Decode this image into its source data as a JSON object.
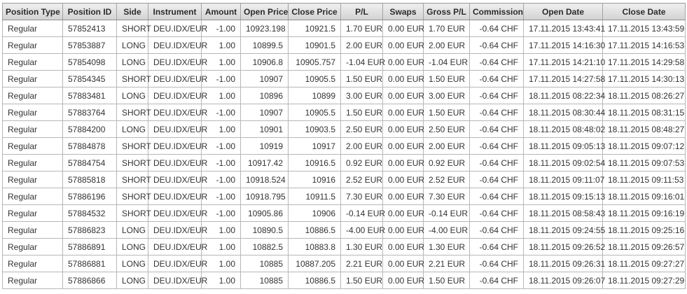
{
  "colors": {
    "positive_value": "#0a9a0a",
    "negative_value": "#cc0000",
    "header_background_top": "#efefef",
    "header_background_bottom": "#d2d2d2",
    "grid_border": "#b7b7b7",
    "text": "#333333"
  },
  "table": {
    "columns": [
      {
        "label": "Position Type",
        "width": 86,
        "align": "left",
        "type": "text"
      },
      {
        "label": "Position ID",
        "width": 77,
        "align": "left",
        "type": "text"
      },
      {
        "label": "Side",
        "width": 45,
        "align": "center",
        "type": "text"
      },
      {
        "label": "Instrument",
        "width": 76,
        "align": "center",
        "type": "text"
      },
      {
        "label": "Amount",
        "width": 56,
        "align": "right",
        "type": "signed"
      },
      {
        "label": "Open Price",
        "width": 68,
        "align": "right",
        "type": "number"
      },
      {
        "label": "Close Price",
        "width": 75,
        "align": "right",
        "type": "number"
      },
      {
        "label": "P/L",
        "width": 60,
        "align": "center",
        "type": "signed"
      },
      {
        "label": "Swaps",
        "width": 58,
        "align": "center",
        "type": "signed"
      },
      {
        "label": "Gross P/L",
        "width": 66,
        "align": "center",
        "type": "signed"
      },
      {
        "label": "Commission",
        "width": 77,
        "align": "right",
        "type": "signed"
      },
      {
        "label": "Open Date",
        "width": 113,
        "align": "center",
        "type": "date"
      },
      {
        "label": "Close Date",
        "width": 118,
        "align": "center",
        "type": "date"
      }
    ],
    "rows": [
      [
        "Regular",
        "57852413",
        "SHORT",
        "DEU.IDX/EUR",
        "-1.00",
        "10923.198",
        "10921.5",
        "1.70 EUR",
        "0.00 EUR",
        "1.70 EUR",
        "-0.64 CHF",
        "17.11.2015 13:43:41",
        "17.11.2015 13:43:59"
      ],
      [
        "Regular",
        "57853887",
        "LONG",
        "DEU.IDX/EUR",
        "1.00",
        "10899.5",
        "10901.5",
        "2.00 EUR",
        "0.00 EUR",
        "2.00 EUR",
        "-0.64 CHF",
        "17.11.2015 14:16:30",
        "17.11.2015 14:16:53"
      ],
      [
        "Regular",
        "57854098",
        "LONG",
        "DEU.IDX/EUR",
        "1.00",
        "10906.8",
        "10905.757",
        "-1.04 EUR",
        "0.00 EUR",
        "-1.04 EUR",
        "-0.64 CHF",
        "17.11.2015 14:21:10",
        "17.11.2015 14:29:58"
      ],
      [
        "Regular",
        "57854345",
        "SHORT",
        "DEU.IDX/EUR",
        "-1.00",
        "10907",
        "10905.5",
        "1.50 EUR",
        "0.00 EUR",
        "1.50 EUR",
        "-0.64 CHF",
        "17.11.2015 14:27:58",
        "17.11.2015 14:30:13"
      ],
      [
        "Regular",
        "57883481",
        "LONG",
        "DEU.IDX/EUR",
        "1.00",
        "10896",
        "10899",
        "3.00 EUR",
        "0.00 EUR",
        "3.00 EUR",
        "-0.64 CHF",
        "18.11.2015 08:22:34",
        "18.11.2015 08:26:27"
      ],
      [
        "Regular",
        "57883764",
        "SHORT",
        "DEU.IDX/EUR",
        "-1.00",
        "10907",
        "10905.5",
        "1.50 EUR",
        "0.00 EUR",
        "1.50 EUR",
        "-0.64 CHF",
        "18.11.2015 08:30:44",
        "18.11.2015 08:31:15"
      ],
      [
        "Regular",
        "57884200",
        "LONG",
        "DEU.IDX/EUR",
        "1.00",
        "10901",
        "10903.5",
        "2.50 EUR",
        "0.00 EUR",
        "2.50 EUR",
        "-0.64 CHF",
        "18.11.2015 08:48:02",
        "18.11.2015 08:48:27"
      ],
      [
        "Regular",
        "57884878",
        "SHORT",
        "DEU.IDX/EUR",
        "-1.00",
        "10919",
        "10917",
        "2.00 EUR",
        "0.00 EUR",
        "2.00 EUR",
        "-0.64 CHF",
        "18.11.2015 09:05:13",
        "18.11.2015 09:07:12"
      ],
      [
        "Regular",
        "57884754",
        "SHORT",
        "DEU.IDX/EUR",
        "-1.00",
        "10917.42",
        "10916.5",
        "0.92 EUR",
        "0.00 EUR",
        "0.92 EUR",
        "-0.64 CHF",
        "18.11.2015 09:02:54",
        "18.11.2015 09:07:53"
      ],
      [
        "Regular",
        "57885818",
        "SHORT",
        "DEU.IDX/EUR",
        "-1.00",
        "10918.524",
        "10916",
        "2.52 EUR",
        "0.00 EUR",
        "2.52 EUR",
        "-0.64 CHF",
        "18.11.2015 09:11:07",
        "18.11.2015 09:11:53"
      ],
      [
        "Regular",
        "57886196",
        "SHORT",
        "DEU.IDX/EUR",
        "-1.00",
        "10918.795",
        "10911.5",
        "7.30 EUR",
        "0.00 EUR",
        "7.30 EUR",
        "-0.64 CHF",
        "18.11.2015 09:15:13",
        "18.11.2015 09:16:01"
      ],
      [
        "Regular",
        "57884532",
        "SHORT",
        "DEU.IDX/EUR",
        "-1.00",
        "10905.86",
        "10906",
        "-0.14 EUR",
        "0.00 EUR",
        "-0.14 EUR",
        "-0.64 CHF",
        "18.11.2015 08:58:43",
        "18.11.2015 09:16:19"
      ],
      [
        "Regular",
        "57886823",
        "LONG",
        "DEU.IDX/EUR",
        "1.00",
        "10890.5",
        "10886.5",
        "-4.00 EUR",
        "0.00 EUR",
        "-4.00 EUR",
        "-0.64 CHF",
        "18.11.2015 09:24:55",
        "18.11.2015 09:25:16"
      ],
      [
        "Regular",
        "57886891",
        "LONG",
        "DEU.IDX/EUR",
        "1.00",
        "10882.5",
        "10883.8",
        "1.30 EUR",
        "0.00 EUR",
        "1.30 EUR",
        "-0.64 CHF",
        "18.11.2015 09:26:52",
        "18.11.2015 09:26:57"
      ],
      [
        "Regular",
        "57886881",
        "LONG",
        "DEU.IDX/EUR",
        "1.00",
        "10885",
        "10887.205",
        "2.21 EUR",
        "0.00 EUR",
        "2.21 EUR",
        "-0.64 CHF",
        "18.11.2015 09:26:31",
        "18.11.2015 09:27:27"
      ],
      [
        "Regular",
        "57886866",
        "LONG",
        "DEU.IDX/EUR",
        "1.00",
        "10885",
        "10886.5",
        "1.50 EUR",
        "0.00 EUR",
        "1.50 EUR",
        "-0.64 CHF",
        "18.11.2015 09:26:07",
        "18.11.2015 09:27:29"
      ]
    ]
  }
}
